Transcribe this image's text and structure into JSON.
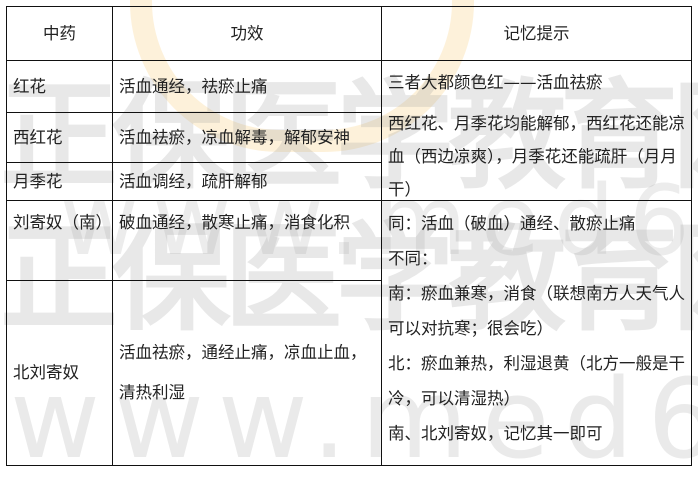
{
  "watermark": {
    "brand": "正保医学教育网",
    "url": "www.med66.com"
  },
  "table": {
    "headers": [
      "中药",
      "功效",
      "记忆提示"
    ],
    "rows": [
      {
        "herb": "红花",
        "effect": "活血通经，祛瘀止痛"
      },
      {
        "herb": "西红花",
        "effect": "活血祛瘀，凉血解毒，解郁安神"
      },
      {
        "herb": "月季花",
        "effect": "活血调经，疏肝解郁"
      },
      {
        "herb": "刘寄奴（南）",
        "effect": "破血通经，散寒止痛，消食化积"
      },
      {
        "herb": "北刘寄奴",
        "effect": "活血祛瘀，通经止痛，凉血止血，清热利湿"
      }
    ],
    "memory": [
      {
        "lines": [
          "三者大都颜色红——活血祛瘀",
          "西红花、月季花均能解郁，西红花还能凉血（西边凉爽），月季花还能疏肝（月月干）"
        ]
      },
      {
        "lines": [
          "同：活血（破血）通经、散瘀止痛",
          "不同：",
          "南：瘀血兼寒，消食（联想南方人天气人可以对抗寒；很会吃）",
          "北：瘀血兼热，利湿退黄（北方一般是干冷，可以清湿热）",
          "南、北刘寄奴，记忆其一即可"
        ]
      }
    ]
  }
}
